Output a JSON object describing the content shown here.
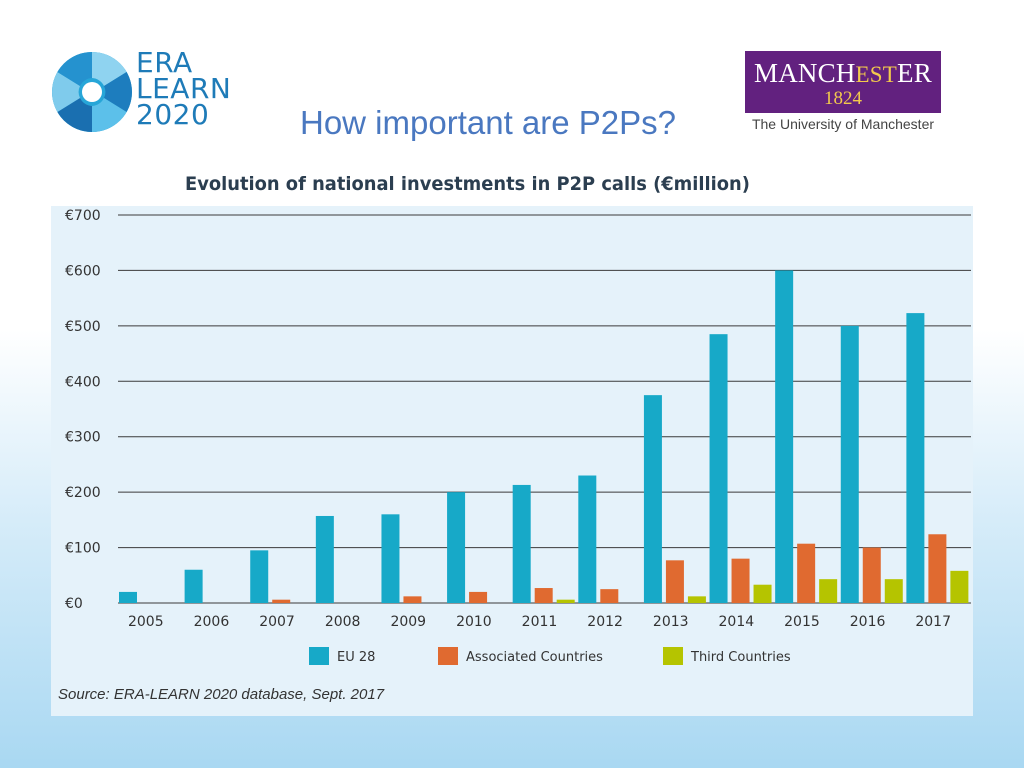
{
  "logos": {
    "era_learn": {
      "line1": "ERA",
      "line2": "LEARN",
      "line3": "2020"
    },
    "manchester": {
      "name_a": "MANCH",
      "name_b": "EST",
      "name_c": "ER",
      "year": "1824",
      "university": "The University of Manchester"
    }
  },
  "slide": {
    "title": "How important are P2Ps?"
  },
  "chart_data": {
    "type": "bar",
    "title": "Evolution of national investments in P2P calls (€million)",
    "categories": [
      "2005",
      "2006",
      "2007",
      "2008",
      "2009",
      "2010",
      "2011",
      "2012",
      "2013",
      "2014",
      "2015",
      "2016",
      "2017"
    ],
    "series": [
      {
        "name": "EU 28",
        "color": "#17a9c8",
        "values": [
          20,
          60,
          95,
          157,
          160,
          200,
          213,
          230,
          375,
          485,
          600,
          500,
          523
        ]
      },
      {
        "name": "Associated Countries",
        "color": "#e06a30",
        "values": [
          0,
          0,
          6,
          0,
          12,
          20,
          27,
          25,
          77,
          80,
          107,
          100,
          124
        ]
      },
      {
        "name": "Third Countries",
        "color": "#b5c400",
        "values": [
          0,
          0,
          0,
          0,
          0,
          0,
          6,
          0,
          12,
          33,
          43,
          43,
          58
        ]
      }
    ],
    "yticks": [
      "€0",
      "€100",
      "€200",
      "€300",
      "€400",
      "€500",
      "€600",
      "€700"
    ],
    "ylim": [
      0,
      700
    ],
    "grid": true,
    "legend": "bottom",
    "source": "Source: ERA-LEARN 2020 database, Sept. 2017"
  }
}
